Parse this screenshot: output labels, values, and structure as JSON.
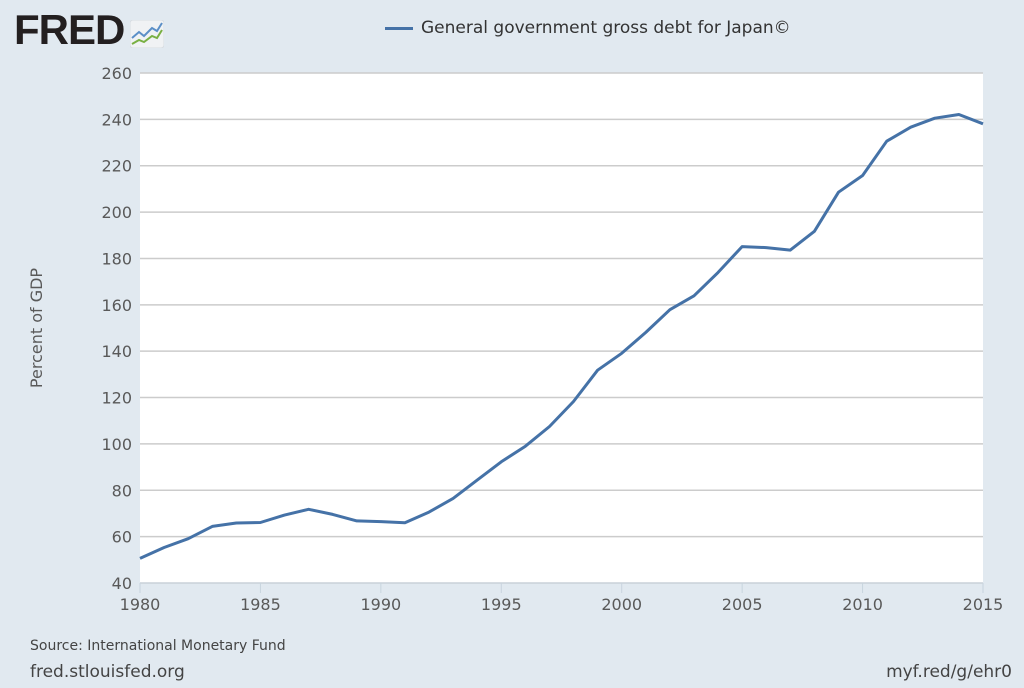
{
  "logo": {
    "text": "FRED"
  },
  "footer": {
    "source": "Source: International Monetary Fund",
    "site": "fred.stlouisfed.org",
    "short_url": "myf.red/g/ehr0"
  },
  "chart_data": {
    "type": "line",
    "title": "",
    "legend": [
      "General government gross debt for Japan©"
    ],
    "legend_placement": "top-center",
    "xlabel": "",
    "ylabel": "Percent of GDP",
    "xlim": [
      1980,
      2015
    ],
    "ylim": [
      40,
      260
    ],
    "xticks": [
      1980,
      1985,
      1990,
      1995,
      2000,
      2005,
      2010,
      2015
    ],
    "yticks": [
      40,
      60,
      80,
      100,
      120,
      140,
      160,
      180,
      200,
      220,
      240,
      260
    ],
    "grid": true,
    "line_color": "#4572a7",
    "series": [
      {
        "name": "General government gross debt for Japan©",
        "x": [
          1980,
          1981,
          1982,
          1983,
          1984,
          1985,
          1986,
          1987,
          1988,
          1989,
          1990,
          1991,
          1992,
          1993,
          1994,
          1995,
          1996,
          1997,
          1998,
          1999,
          2000,
          2001,
          2002,
          2003,
          2004,
          2005,
          2006,
          2007,
          2008,
          2009,
          2010,
          2011,
          2012,
          2013,
          2014,
          2015
        ],
        "values": [
          50.6,
          55.3,
          59.1,
          64.4,
          65.9,
          66.1,
          69.3,
          71.8,
          69.6,
          66.8,
          66.5,
          66.0,
          70.6,
          76.5,
          84.4,
          92.3,
          99.0,
          107.5,
          118.3,
          131.8,
          139.1,
          148.1,
          157.9,
          163.9,
          174.0,
          185.1,
          184.7,
          183.6,
          191.7,
          208.6,
          215.8,
          230.6,
          236.6,
          240.5,
          242.1,
          238.1
        ]
      }
    ]
  }
}
